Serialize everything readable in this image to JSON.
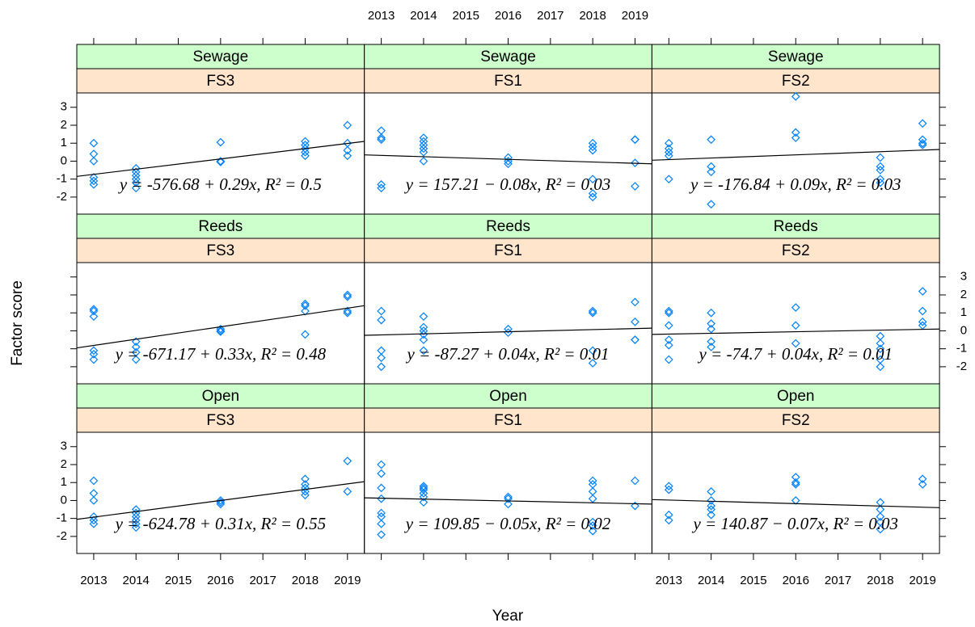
{
  "chart_data": {
    "type": "scatter",
    "xlabel": "Year",
    "ylabel": "Factor score",
    "xlim": [
      2012.6,
      2019.4
    ],
    "xticks": [
      2013,
      2014,
      2015,
      2016,
      2017,
      2018,
      2019
    ],
    "ylim": [
      -2.95,
      3.8
    ],
    "yticks": [
      -2,
      -1,
      0,
      1,
      2,
      3
    ],
    "color": "#0080ff",
    "line_color": "#000000",
    "strip_colors": [
      "#ccffcc",
      "#ffe5cc"
    ],
    "panels": [
      {
        "strips": [
          "Sewage",
          "FS3"
        ],
        "x": [
          2013,
          2013,
          2013,
          2013,
          2013,
          2013,
          2014,
          2014,
          2014,
          2014,
          2014,
          2014,
          2016,
          2016,
          2016,
          2018,
          2018,
          2018,
          2018,
          2018,
          2019,
          2019,
          2019,
          2019
        ],
        "y": [
          1.0,
          0.4,
          0,
          -0.9,
          -1.1,
          -1.3,
          -0.4,
          -0.6,
          -0.8,
          -1.0,
          -1.2,
          -1.5,
          1.05,
          0,
          -0.05,
          1.1,
          0.9,
          0.7,
          0.5,
          0.3,
          2.0,
          1.0,
          0.6,
          0.3
        ],
        "line": {
          "x": [
            2012.6,
            2019.4
          ],
          "y": [
            -0.85,
            1.1
          ]
        },
        "fit_label": "y = -576.68 + 0.29x, R² = 0.5"
      },
      {
        "strips": [
          "Sewage",
          "FS1"
        ],
        "x": [
          2013,
          2013,
          2013,
          2013,
          2013,
          2014,
          2014,
          2014,
          2014,
          2014,
          2014,
          2016,
          2016,
          2016,
          2018,
          2018,
          2018,
          2018,
          2018,
          2018,
          2019,
          2019,
          2019,
          2019
        ],
        "y": [
          1.7,
          1.3,
          1.2,
          -1.3,
          -1.5,
          1.3,
          1.1,
          0.9,
          0.7,
          0.5,
          0,
          0.2,
          0,
          -0.15,
          1.0,
          0.8,
          0.6,
          -1.0,
          -1.8,
          -2.0,
          1.2,
          1.2,
          -0.1,
          -1.4
        ],
        "line": {
          "x": [
            2012.6,
            2019.4
          ],
          "y": [
            0.35,
            -0.15
          ]
        },
        "fit_label": "y = 157.21 − 0.08x, R² = 0.03"
      },
      {
        "strips": [
          "Sewage",
          "FS2"
        ],
        "x": [
          2013,
          2013,
          2013,
          2013,
          2013,
          2014,
          2014,
          2014,
          2014,
          2016,
          2016,
          2016,
          2018,
          2018,
          2018,
          2018,
          2018,
          2019,
          2019,
          2019,
          2019
        ],
        "y": [
          1.0,
          0.7,
          0.5,
          0.3,
          -1.0,
          1.2,
          -0.3,
          -0.6,
          -2.4,
          3.6,
          1.6,
          1.3,
          0.2,
          -0.3,
          -0.5,
          -1.0,
          -1.2,
          2.1,
          1.2,
          1.0,
          0.9
        ],
        "line": {
          "x": [
            2012.6,
            2019.4
          ],
          "y": [
            0.05,
            0.65
          ]
        },
        "fit_label": "y = -176.84 + 0.09x, R² = 0.03"
      },
      {
        "strips": [
          "Reeds",
          "FS3"
        ],
        "x": [
          2013,
          2013,
          2013,
          2013,
          2013,
          2013,
          2014,
          2014,
          2014,
          2014,
          2016,
          2016,
          2016,
          2018,
          2018,
          2018,
          2018,
          2019,
          2019,
          2019,
          2019
        ],
        "y": [
          1.2,
          1.1,
          0.8,
          -1.1,
          -1.3,
          -1.6,
          -0.6,
          -0.9,
          -1.2,
          -1.6,
          0.1,
          0,
          -0.05,
          1.5,
          1.4,
          1.1,
          -0.2,
          2.0,
          1.9,
          1.1,
          1.0
        ],
        "line": {
          "x": [
            2012.6,
            2019.4
          ],
          "y": [
            -0.95,
            1.4
          ]
        },
        "fit_label": "y = -671.17 + 0.33x, R² = 0.48"
      },
      {
        "strips": [
          "Reeds",
          "FS1"
        ],
        "x": [
          2013,
          2013,
          2013,
          2013,
          2013,
          2014,
          2014,
          2014,
          2014,
          2014,
          2014,
          2016,
          2016,
          2018,
          2018,
          2018,
          2018,
          2019,
          2019,
          2019,
          2019
        ],
        "y": [
          1.1,
          0.6,
          -1.1,
          -1.5,
          -2.0,
          0.8,
          0.2,
          0,
          -0.2,
          -0.5,
          -1.1,
          0.1,
          -0.1,
          1.1,
          1.0,
          -1.1,
          -1.8,
          1.6,
          0.5,
          -0.5,
          -0.5
        ],
        "line": {
          "x": [
            2012.6,
            2019.4
          ],
          "y": [
            -0.25,
            0.15
          ]
        },
        "fit_label": "y = -87.27 + 0.04x, R² = 0.01"
      },
      {
        "strips": [
          "Reeds",
          "FS2"
        ],
        "x": [
          2013,
          2013,
          2013,
          2013,
          2013,
          2013,
          2014,
          2014,
          2014,
          2014,
          2014,
          2016,
          2016,
          2016,
          2018,
          2018,
          2018,
          2018,
          2018,
          2019,
          2019,
          2019,
          2019
        ],
        "y": [
          1.1,
          1.0,
          0.3,
          -0.5,
          -0.8,
          -1.6,
          1.0,
          0.4,
          0.1,
          -0.6,
          -0.9,
          1.3,
          0.3,
          -0.7,
          -0.3,
          -0.7,
          -1.0,
          -1.6,
          -2.0,
          2.2,
          1.1,
          0.5,
          0.3
        ],
        "line": {
          "x": [
            2012.6,
            2019.4
          ],
          "y": [
            -0.2,
            0.1
          ]
        },
        "fit_label": "y = -74.7 + 0.04x, R² = 0.01"
      },
      {
        "strips": [
          "Open",
          "FS3"
        ],
        "x": [
          2013,
          2013,
          2013,
          2013,
          2013,
          2013,
          2014,
          2014,
          2014,
          2014,
          2014,
          2014,
          2016,
          2016,
          2016,
          2018,
          2018,
          2018,
          2018,
          2018,
          2019,
          2019
        ],
        "y": [
          1.1,
          0.4,
          0,
          -0.9,
          -1.1,
          -1.3,
          -0.5,
          -0.7,
          -0.9,
          -1.1,
          -1.3,
          -1.5,
          0,
          -0.1,
          -0.2,
          1.2,
          0.9,
          0.7,
          0.5,
          0.3,
          2.2,
          0.5
        ],
        "line": {
          "x": [
            2012.6,
            2019.4
          ],
          "y": [
            -1.05,
            1.05
          ]
        },
        "fit_label": "y = -624.78 + 0.31x, R² = 0.55"
      },
      {
        "strips": [
          "Open",
          "FS1"
        ],
        "x": [
          2013,
          2013,
          2013,
          2013,
          2013,
          2013,
          2013,
          2013,
          2014,
          2014,
          2014,
          2014,
          2014,
          2014,
          2016,
          2016,
          2016,
          2018,
          2018,
          2018,
          2018,
          2018,
          2018,
          2018,
          2019,
          2019
        ],
        "y": [
          2.0,
          1.5,
          0.7,
          0.1,
          -0.7,
          -0.9,
          -1.3,
          -1.9,
          0.8,
          0.7,
          0.6,
          0.4,
          0.2,
          -0.1,
          0.2,
          0.1,
          -0.2,
          1.1,
          0.9,
          0.5,
          0.1,
          -1.2,
          -1.4,
          -1.7,
          1.1,
          -0.3
        ],
        "line": {
          "x": [
            2012.6,
            2019.4
          ],
          "y": [
            0.15,
            -0.2
          ]
        },
        "fit_label": "y = 109.85 − 0.05x, R² = 0.02"
      },
      {
        "strips": [
          "Open",
          "FS2"
        ],
        "x": [
          2013,
          2013,
          2013,
          2013,
          2014,
          2014,
          2014,
          2014,
          2014,
          2016,
          2016,
          2016,
          2016,
          2018,
          2018,
          2018,
          2018,
          2018,
          2019,
          2019
        ],
        "y": [
          0.8,
          0.6,
          -0.8,
          -1.1,
          0.5,
          0,
          -0.3,
          -0.5,
          -0.8,
          1.3,
          1.0,
          0.9,
          0,
          -0.1,
          -0.5,
          -0.9,
          -1.2,
          -1.6,
          1.2,
          0.9
        ],
        "line": {
          "x": [
            2012.6,
            2019.4
          ],
          "y": [
            0.05,
            -0.4
          ]
        },
        "fit_label": "y = 140.87 − 0.07x, R² = 0.03"
      }
    ]
  }
}
